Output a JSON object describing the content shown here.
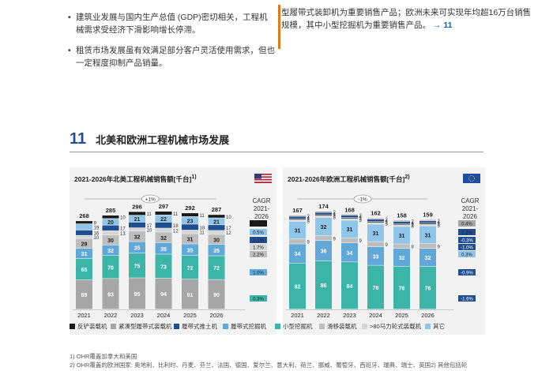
{
  "text": {
    "bullet1": "建筑业发展与国内生产总值 (GDP)密切相关，工程机械需求受经济下滑影响增长停滞。",
    "bullet2": "租赁市场发展虽有效满足部分客户灵活使用需求，但也一定程度抑制产品销量。",
    "right_para": "型履带式装卸机为重要销售产品；欧洲未来可实现年均超16万台销售规模，其中小型挖掘机为重要销售产品。",
    "right_ref": "→ 11",
    "section_number": "11",
    "section_title": "北美和欧洲工程机械市场发展",
    "cagr_label": "CAGR",
    "cagr_period": "2021-2026",
    "footnote1": "1) OHR覆盖加拿大和美国",
    "footnote2": "2) OHR覆盖的欧洲国家: 奥地利、比利时、丹麦、芬兰、法国、德国、爱尔兰、意大利、荷兰、挪威、葡萄牙、西班牙、瑞典、瑞士、英国2) 其他包括轮"
  },
  "colors": {
    "accent": "#1f4e91",
    "flag_us": "#b22234",
    "flag_eu": "#1f4ea0",
    "cagr_neg": "#1f4e91",
    "segments": [
      "#1a1a1a",
      "#a6a6a6",
      "#1f4e91",
      "#5fa8d8",
      "#3cb4a8",
      "#bdbdbd",
      "#d6d6d6",
      "#8ec5e8"
    ]
  },
  "legend": [
    "反铲装载机",
    "紧凑型履带式装载机",
    "履带式推土机",
    "履带式挖掘机",
    "小型挖掘机",
    "滑移装载机",
    ">80马力轮式装载机",
    "其它"
  ],
  "chart_data": [
    {
      "type": "bar",
      "title": "2021-2026年北美工程机械销售额[千台]",
      "title_sup": "1)",
      "growth_label": "+1%",
      "categories": [
        "2021",
        "2022",
        "2023",
        "2024",
        "2025",
        "2026"
      ],
      "totals": [
        268,
        285,
        296,
        297,
        292,
        287
      ],
      "segments_order": [
        "紧凑型履带式装载机",
        "小型挖掘机",
        "履带式挖掘机",
        "滑移装载机",
        ">80马力轮式装载机",
        "履带式推土机",
        "其它",
        "反铲装载机"
      ],
      "series": [
        {
          "name": "紧凑型履带式装载机",
          "values": [
            89,
            93,
            95,
            94,
            91,
            90
          ]
        },
        {
          "name": "小型挖掘机",
          "values": [
            65,
            70,
            75,
            73,
            72,
            72
          ]
        },
        {
          "name": "履带式挖掘机",
          "values": [
            31,
            32,
            35,
            35,
            35,
            35
          ]
        },
        {
          "name": "滑移装载机",
          "values": [
            29,
            30,
            32,
            32,
            31,
            30
          ]
        },
        {
          "name": ">80马力轮式装载机",
          "values": [
            10,
            13,
            10,
            12,
            11,
            12
          ]
        },
        {
          "name": "履带式推土机",
          "values": [
            16,
            17,
            17,
            18,
            18,
            17
          ]
        },
        {
          "name": "其它",
          "values": [
            19,
            20,
            21,
            22,
            23,
            21
          ]
        },
        {
          "name": "反铲装载机",
          "values": [
            9,
            10,
            11,
            11,
            11,
            10
          ]
        }
      ],
      "cagr": [
        "1.1%",
        "0.5%",
        "1.1%",
        "1.7%",
        "2.2%",
        "1.0%",
        "0.3%"
      ],
      "cagr_neg": [
        false,
        false,
        false,
        false,
        false,
        false,
        false
      ]
    },
    {
      "type": "bar",
      "title": "2021-2026年欧洲工程机械销售额[千台]",
      "title_sup": "2)",
      "growth_label": "-1%",
      "categories": [
        "2021",
        "2022",
        "2023",
        "2024",
        "2025",
        "2026"
      ],
      "totals": [
        167,
        174,
        168,
        162,
        158,
        159
      ],
      "segments_order": [
        "小型挖掘机",
        "履带式挖掘机",
        "滑移装载机",
        "其它",
        ">80马力轮式装载机",
        "反铲装载机",
        "履带式推土机",
        "紧凑型履带式装载机"
      ],
      "series": [
        {
          "name": "小型挖掘机",
          "values": [
            82,
            86,
            84,
            78,
            76,
            76
          ]
        },
        {
          "name": "履带式挖掘机",
          "values": [
            34,
            36,
            34,
            33,
            32,
            32
          ]
        },
        {
          "name": "滑移装载机",
          "values": [
            9,
            9,
            9,
            9,
            8,
            9
          ]
        },
        {
          "name": "其它",
          "values": [
            31,
            32,
            31,
            31,
            31,
            31
          ]
        },
        {
          "name": ">80马力轮式装载机",
          "values": [
            3,
            3,
            3,
            3,
            3,
            3
          ]
        },
        {
          "name": "反铲装载机",
          "values": [
            2,
            2,
            2,
            2,
            2,
            2
          ]
        },
        {
          "name": "履带式推土机",
          "values": [
            4,
            4,
            4,
            4,
            4,
            4
          ]
        },
        {
          "name": "紧凑型履带式装载机",
          "values": [
            2,
            2,
            2,
            2,
            2,
            2
          ]
        }
      ],
      "cagr": [
        "0.4%",
        "2.2%",
        "-0.3%",
        "-1.0%",
        "0.3%",
        "-0.9%",
        "-1.6%"
      ],
      "cagr_neg": [
        false,
        false,
        true,
        true,
        false,
        true,
        true
      ]
    }
  ]
}
